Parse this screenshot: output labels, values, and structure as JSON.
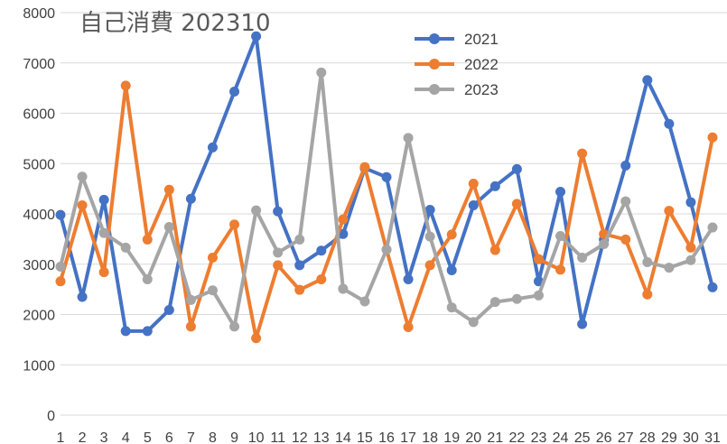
{
  "chart_data": {
    "type": "line",
    "title": "自己消費 202310",
    "xlabel": "",
    "ylabel": "",
    "ylim": [
      0,
      8000
    ],
    "yticks": [
      0,
      1000,
      2000,
      3000,
      4000,
      5000,
      6000,
      7000,
      8000
    ],
    "grid": true,
    "legend_position": "top-center",
    "categories": [
      "1",
      "2",
      "3",
      "4",
      "5",
      "6",
      "7",
      "8",
      "9",
      "10",
      "11",
      "12",
      "13",
      "14",
      "15",
      "16",
      "17",
      "18",
      "19",
      "20",
      "21",
      "22",
      "23",
      "24",
      "25",
      "26",
      "27",
      "28",
      "29",
      "30",
      "31"
    ],
    "series": [
      {
        "name": "2021",
        "color": "#4472C4",
        "values": [
          3980,
          2350,
          4280,
          1670,
          1670,
          2090,
          4300,
          5320,
          6430,
          7530,
          4050,
          2980,
          3270,
          3600,
          4910,
          4730,
          2700,
          4080,
          2880,
          4170,
          4550,
          4890,
          2660,
          4440,
          1810,
          3490,
          4960,
          6660,
          5790,
          4230,
          2540
        ]
      },
      {
        "name": "2022",
        "color": "#ED7D31",
        "values": [
          2660,
          4170,
          2840,
          6550,
          3490,
          4480,
          1760,
          3130,
          3790,
          1530,
          2980,
          2490,
          2700,
          3890,
          4930,
          3290,
          1750,
          2980,
          3590,
          4600,
          3280,
          4200,
          3100,
          2890,
          5200,
          3600,
          3490,
          2400,
          4060,
          3330,
          5520
        ]
      },
      {
        "name": "2023",
        "color": "#A5A5A5",
        "values": [
          2950,
          4740,
          3620,
          3330,
          2700,
          3740,
          2290,
          2480,
          1760,
          4070,
          3230,
          3490,
          6810,
          2510,
          2260,
          3290,
          5510,
          3550,
          2140,
          1850,
          2250,
          2310,
          2380,
          3560,
          3130,
          3400,
          4250,
          3040,
          2930,
          3080,
          3730
        ]
      }
    ]
  }
}
